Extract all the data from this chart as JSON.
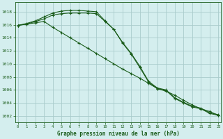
{
  "title": "Graphe pression niveau de la mer (hPa)",
  "background_color": "#d4eeee",
  "grid_color": "#aacccc",
  "line_color": "#1a5c1a",
  "x_values": [
    0,
    1,
    2,
    3,
    4,
    5,
    6,
    7,
    8,
    9,
    10,
    11,
    12,
    13,
    14,
    15,
    16,
    17,
    18,
    19,
    20,
    21,
    22,
    23
  ],
  "line1": [
    1015.9,
    1016.1,
    1016.5,
    1016.9,
    1017.5,
    1017.7,
    1017.8,
    1017.8,
    1017.8,
    1017.7,
    1016.5,
    1015.3,
    1013.2,
    1011.5,
    1009.4,
    1007.2,
    1006.2,
    1005.9,
    1004.7,
    1004.0,
    1003.4,
    1003.1,
    1002.4,
    1002.1
  ],
  "line2": [
    1015.9,
    1016.2,
    1016.6,
    1017.2,
    1017.8,
    1018.1,
    1018.2,
    1018.2,
    1018.1,
    1018.0,
    1016.6,
    1015.3,
    1013.3,
    1011.6,
    1009.6,
    1007.3,
    1006.3,
    1006.0,
    1004.8,
    1004.1,
    1003.5,
    1003.2,
    1002.5,
    1002.2
  ],
  "line3": [
    1015.9,
    1016.1,
    1016.3,
    1016.5,
    1015.6,
    1014.8,
    1014.0,
    1013.2,
    1012.4,
    1011.6,
    1010.8,
    1010.0,
    1009.2,
    1008.5,
    1007.8,
    1007.0,
    1006.2,
    1005.8,
    1005.2,
    1004.4,
    1003.7,
    1003.1,
    1002.7,
    1002.1
  ],
  "ylim": [
    1001.0,
    1019.5
  ],
  "yticks": [
    1002,
    1004,
    1006,
    1008,
    1010,
    1012,
    1014,
    1016,
    1018
  ],
  "xticks": [
    0,
    1,
    2,
    3,
    4,
    5,
    6,
    7,
    8,
    9,
    10,
    11,
    12,
    13,
    14,
    15,
    16,
    17,
    18,
    19,
    20,
    21,
    22,
    23
  ]
}
